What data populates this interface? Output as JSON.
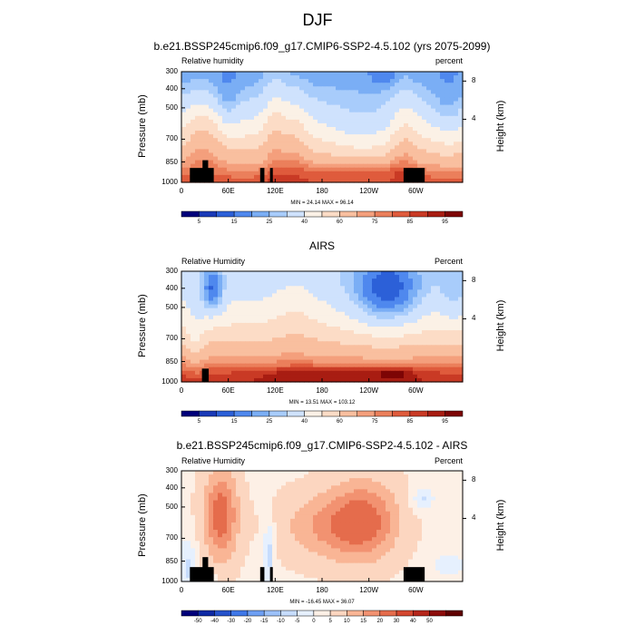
{
  "title": "DJF",
  "colors": {
    "abs_scale": [
      "#00007a",
      "#1a3ab8",
      "#2c60d8",
      "#4f88ee",
      "#7aaef5",
      "#a8ccfb",
      "#cfe2fd",
      "#fbf1e6",
      "#fcdcc6",
      "#f9bf9f",
      "#f49f7c",
      "#eb7f5b",
      "#df5b3c",
      "#c93a25",
      "#a81d12",
      "#7d0505"
    ],
    "diff_scale": [
      "#00007a",
      "#0d29a4",
      "#2552cb",
      "#3f78e8",
      "#6d9ff3",
      "#9cc1f9",
      "#c6dcfd",
      "#e6f0fe",
      "#fdf0e6",
      "#fcd6c0",
      "#f9b595",
      "#f29271",
      "#e56c4c",
      "#d4472f",
      "#b5251a",
      "#8d0c0a",
      "#5f0000"
    ],
    "topography": "#000000"
  },
  "chart_data": [
    {
      "type": "heatmap",
      "title": "b.e21.BSSP245cmip6.f09_g17.CMIP6-SSP2-4.5.102 (yrs 2075-2099)",
      "left_label": "Relative humidity",
      "right_label": "percent",
      "ylabel": "Pressure (mb)",
      "right_axis_label": "Height (km)",
      "x_ticks": [
        "0",
        "60E",
        "120E",
        "180",
        "120W",
        "60W"
      ],
      "y_ticks": [
        "300",
        "400",
        "500",
        "700",
        "850",
        "1000"
      ],
      "right_ticks": [
        "8",
        "4"
      ],
      "minmax_text": "MIN = 24.14  MAX = 96.14",
      "colorbar_labels": [
        "5",
        "15",
        "25",
        "40",
        "60",
        "75",
        "85",
        "95"
      ],
      "scale": "abs",
      "min": 24.14,
      "max": 96.14
    },
    {
      "type": "heatmap",
      "title": "AIRS",
      "left_label": "Relative Humidity",
      "right_label": "Percent",
      "ylabel": "Pressure (mb)",
      "right_axis_label": "Height (km)",
      "x_ticks": [
        "0",
        "60E",
        "120E",
        "180",
        "120W",
        "60W"
      ],
      "y_ticks": [
        "300",
        "400",
        "500",
        "700",
        "850",
        "1000"
      ],
      "right_ticks": [
        "8",
        "4"
      ],
      "minmax_text": "MIN = 13.51  MAX = 103.12",
      "colorbar_labels": [
        "5",
        "15",
        "25",
        "40",
        "60",
        "75",
        "85",
        "95"
      ],
      "scale": "abs",
      "min": 13.51,
      "max": 103.12
    },
    {
      "type": "heatmap",
      "title": "b.e21.BSSP245cmip6.f09_g17.CMIP6-SSP2-4.5.102 - AIRS",
      "left_label": "Relative Humidity",
      "right_label": "Percent",
      "ylabel": "Pressure (mb)",
      "right_axis_label": "Height (km)",
      "x_ticks": [
        "0",
        "60E",
        "120E",
        "180",
        "120W",
        "60W"
      ],
      "y_ticks": [
        "300",
        "400",
        "500",
        "700",
        "850",
        "1000"
      ],
      "right_ticks": [
        "8",
        "4"
      ],
      "minmax_text": "MIN = -16.45  MAX = 36.07",
      "colorbar_labels": [
        "-50",
        "-40",
        "-30",
        "-20",
        "-15",
        "-10",
        "-5",
        "0",
        "5",
        "10",
        "15",
        "20",
        "30",
        "40",
        "50"
      ],
      "scale": "diff",
      "min": -16.45,
      "max": 36.07
    }
  ]
}
